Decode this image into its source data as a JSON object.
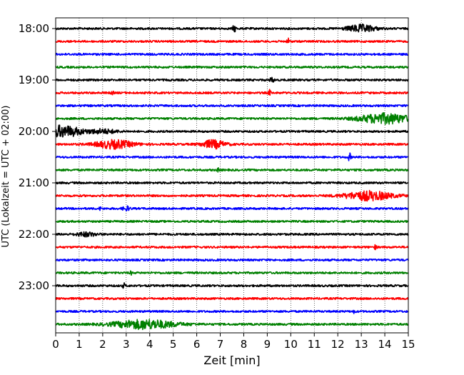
{
  "chart_data": {
    "type": "line",
    "title": "",
    "xlabel": "Zeit  [min]",
    "ylabel": "UTC (Lokalzeit = UTC + 02:00)",
    "xlim": [
      0,
      15
    ],
    "x_ticks": [
      0,
      1,
      2,
      3,
      4,
      5,
      6,
      7,
      8,
      9,
      10,
      11,
      12,
      13,
      14,
      15
    ],
    "y_tick_labels": [
      "18:00",
      "19:00",
      "20:00",
      "21:00",
      "22:00",
      "23:00"
    ],
    "traces_per_hour": 4,
    "minutes_per_trace": 15,
    "grid": "vertical dotted at each minute",
    "trace_colors": [
      "#000000",
      "#ff0000",
      "#0000ff",
      "#008000"
    ],
    "traces": [
      {
        "start": "18:00",
        "events": [
          {
            "t": 7.6,
            "amp": 0.6,
            "dur": 0.15
          },
          {
            "t": 13.0,
            "amp": 0.7,
            "dur": 1.2
          }
        ]
      },
      {
        "start": "18:15",
        "events": [
          {
            "t": 9.9,
            "amp": 0.6,
            "dur": 0.1
          }
        ]
      },
      {
        "start": "18:30",
        "events": []
      },
      {
        "start": "18:45",
        "events": []
      },
      {
        "start": "19:00",
        "events": [
          {
            "t": 9.2,
            "amp": 0.4,
            "dur": 0.2
          }
        ]
      },
      {
        "start": "19:15",
        "events": [
          {
            "t": 2.4,
            "amp": 0.4,
            "dur": 0.1
          },
          {
            "t": 9.1,
            "amp": 0.5,
            "dur": 0.1
          }
        ]
      },
      {
        "start": "19:30",
        "events": []
      },
      {
        "start": "19:45",
        "events": [
          {
            "t": 14.0,
            "amp": 1.0,
            "dur": 2.2
          }
        ]
      },
      {
        "start": "20:00",
        "events": [
          {
            "t": 0.3,
            "amp": 1.1,
            "dur": 1.6
          },
          {
            "t": 2.0,
            "amp": 0.4,
            "dur": 1.2
          }
        ]
      },
      {
        "start": "20:15",
        "events": [
          {
            "t": 2.5,
            "amp": 0.8,
            "dur": 1.6
          },
          {
            "t": 6.7,
            "amp": 0.8,
            "dur": 1.0
          }
        ]
      },
      {
        "start": "20:30",
        "events": [
          {
            "t": 12.5,
            "amp": 0.8,
            "dur": 0.1
          }
        ]
      },
      {
        "start": "20:45",
        "events": [
          {
            "t": 6.9,
            "amp": 0.3,
            "dur": 0.1
          }
        ]
      },
      {
        "start": "21:00",
        "events": []
      },
      {
        "start": "21:15",
        "events": [
          {
            "t": 13.3,
            "amp": 0.9,
            "dur": 2.0
          }
        ]
      },
      {
        "start": "21:30",
        "events": [
          {
            "t": 3.0,
            "amp": 0.4,
            "dur": 0.3
          },
          {
            "t": 1.9,
            "amp": 0.3,
            "dur": 0.1
          }
        ]
      },
      {
        "start": "21:45",
        "events": []
      },
      {
        "start": "22:00",
        "events": [
          {
            "t": 1.3,
            "amp": 0.4,
            "dur": 0.8
          }
        ]
      },
      {
        "start": "22:15",
        "events": [
          {
            "t": 13.6,
            "amp": 0.4,
            "dur": 0.1
          }
        ]
      },
      {
        "start": "22:30",
        "events": []
      },
      {
        "start": "22:45",
        "events": [
          {
            "t": 3.2,
            "amp": 0.3,
            "dur": 0.1
          }
        ]
      },
      {
        "start": "23:00",
        "events": [
          {
            "t": 2.9,
            "amp": 0.5,
            "dur": 0.1
          }
        ]
      },
      {
        "start": "23:15",
        "events": []
      },
      {
        "start": "23:30",
        "events": [
          {
            "t": 12.7,
            "amp": 0.3,
            "dur": 0.1
          }
        ]
      },
      {
        "start": "23:45",
        "events": [
          {
            "t": 3.8,
            "amp": 0.9,
            "dur": 2.6
          }
        ]
      }
    ]
  }
}
